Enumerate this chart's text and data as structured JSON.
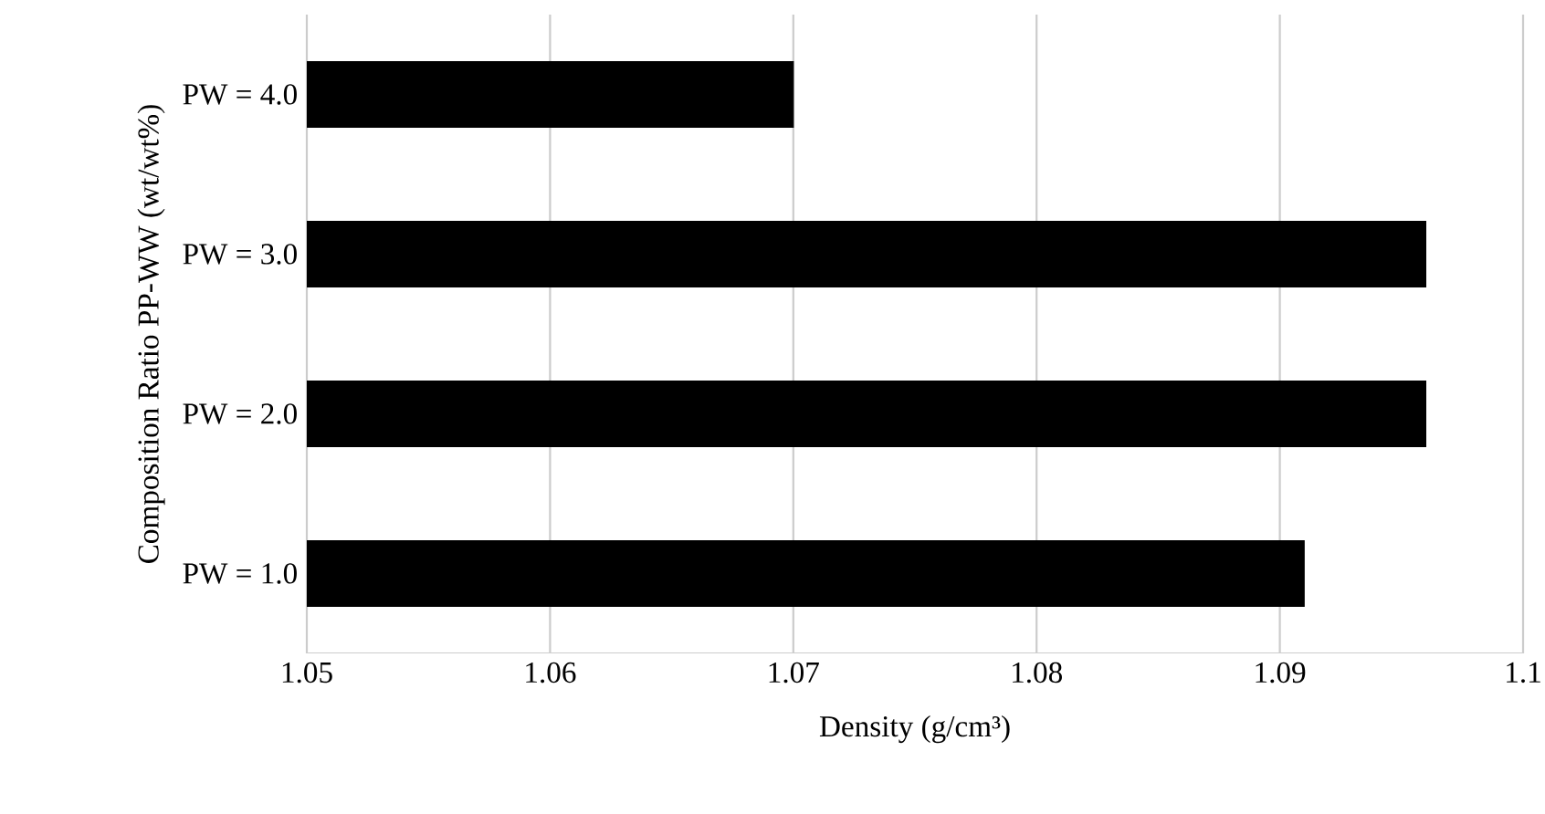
{
  "chart_data": {
    "type": "bar",
    "orientation": "horizontal",
    "xlabel": "Density (g/cm³)",
    "ylabel": "Composition Ratio PP-WW (wt/wt%)",
    "categories": [
      "PW = 4.0",
      "PW = 3.0",
      "PW = 2.0",
      "PW = 1.0"
    ],
    "values": [
      1.07,
      1.096,
      1.096,
      1.091
    ],
    "color": "#000000",
    "xlim": [
      1.05,
      1.1
    ],
    "xticks": [
      1.05,
      1.06,
      1.07,
      1.08,
      1.09,
      1.1
    ],
    "grid": "x"
  }
}
